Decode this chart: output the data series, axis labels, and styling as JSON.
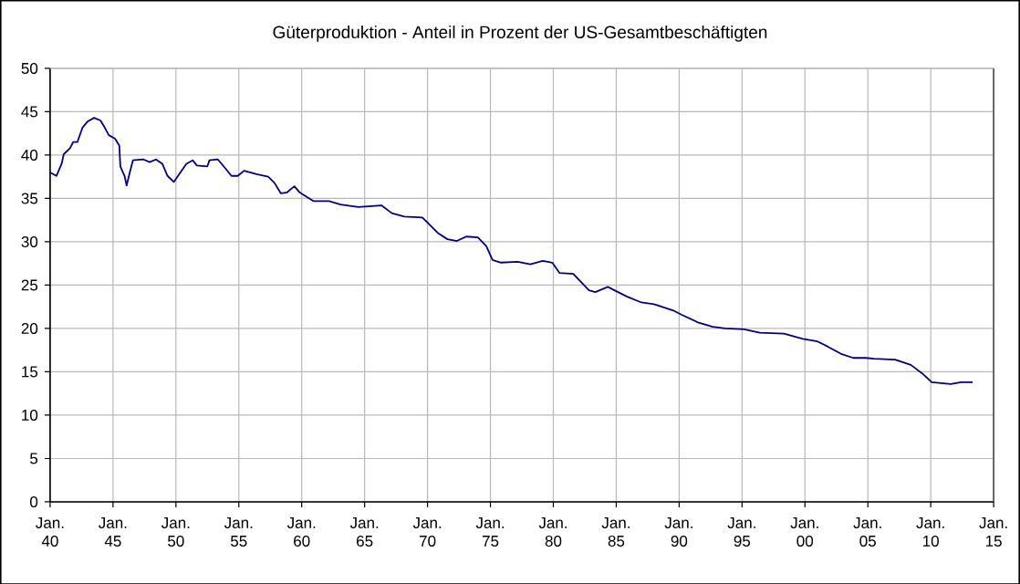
{
  "chart_data": {
    "type": "line",
    "title": "Güterproduktion - Anteil in Prozent der US-Gesamtbeschäftigten",
    "x": [
      "1940-01",
      "1940-07",
      "1940-12",
      "1941-02",
      "1941-08",
      "1941-11",
      "1942-03",
      "1942-08",
      "1943-01",
      "1943-07",
      "1944-01",
      "1944-05",
      "1944-09",
      "1945-03",
      "1945-07",
      "1945-08",
      "1945-12",
      "1946-02",
      "1946-05",
      "1946-08",
      "1947-06",
      "1947-12",
      "1948-06",
      "1948-12",
      "1949-05",
      "1949-11",
      "1950-03",
      "1950-11",
      "1951-05",
      "1951-09",
      "1952-07",
      "1952-09",
      "1953-05",
      "1953-12",
      "1954-06",
      "1954-12",
      "1955-06",
      "1956-06",
      "1957-05",
      "1957-11",
      "1958-05",
      "1958-11",
      "1959-06",
      "1959-11",
      "1960-03",
      "1960-12",
      "1962-03",
      "1963-02",
      "1964-07",
      "1966-05",
      "1967-03",
      "1968-03",
      "1969-08",
      "1970-02",
      "1970-11",
      "1971-08",
      "1972-05",
      "1973-02",
      "1974-01",
      "1974-09",
      "1975-03",
      "1975-11",
      "1977-03",
      "1978-03",
      "1979-03",
      "1979-12",
      "1980-07",
      "1981-08",
      "1982-11",
      "1983-05",
      "1984-05",
      "1985-01",
      "1985-11",
      "1987-01",
      "1988-01",
      "1989-07",
      "1990-03",
      "1991-07",
      "1992-09",
      "1993-09",
      "1995-03",
      "1996-06",
      "1998-05",
      "1999-11",
      "2001-01",
      "2001-11",
      "2002-11",
      "2003-11",
      "2004-11",
      "2005-07",
      "2007-03",
      "2008-06",
      "2009-06",
      "2010-02",
      "2011-08",
      "2012-06",
      "2013-05"
    ],
    "series": [
      {
        "color": "#000080",
        "values": [
          38.0,
          37.6,
          39.0,
          40.1,
          40.8,
          41.5,
          41.5,
          43.2,
          43.9,
          44.3,
          44.0,
          43.2,
          42.3,
          41.9,
          41.1,
          38.7,
          37.6,
          36.5,
          38.0,
          39.4,
          39.5,
          39.2,
          39.5,
          39.0,
          37.6,
          36.9,
          37.6,
          39.0,
          39.4,
          38.8,
          38.7,
          39.4,
          39.5,
          38.5,
          37.6,
          37.6,
          38.2,
          37.8,
          37.5,
          36.8,
          35.6,
          35.7,
          36.4,
          35.7,
          35.4,
          34.7,
          34.7,
          34.3,
          34.0,
          34.2,
          33.3,
          32.9,
          32.8,
          32.1,
          31.0,
          30.3,
          30.1,
          30.6,
          30.5,
          29.5,
          27.9,
          27.6,
          27.7,
          27.4,
          27.8,
          27.6,
          26.4,
          26.3,
          24.4,
          24.2,
          24.8,
          24.3,
          23.7,
          23.0,
          22.8,
          22.1,
          21.6,
          20.7,
          20.2,
          20.0,
          19.9,
          19.5,
          19.4,
          18.8,
          18.5,
          17.9,
          17.1,
          16.6,
          16.6,
          16.5,
          16.4,
          15.8,
          14.7,
          13.8,
          13.6,
          13.8,
          13.8
        ]
      }
    ],
    "xlim": [
      "1940-01",
      "2015-01"
    ],
    "ylim": [
      0,
      50
    ],
    "xticks": [
      {
        "value": "1940-01",
        "label": "Jan. 40"
      },
      {
        "value": "1945-01",
        "label": "Jan. 45"
      },
      {
        "value": "1950-01",
        "label": "Jan. 50"
      },
      {
        "value": "1955-01",
        "label": "Jan. 55"
      },
      {
        "value": "1960-01",
        "label": "Jan. 60"
      },
      {
        "value": "1965-01",
        "label": "Jan. 65"
      },
      {
        "value": "1970-01",
        "label": "Jan. 70"
      },
      {
        "value": "1975-01",
        "label": "Jan. 75"
      },
      {
        "value": "1980-01",
        "label": "Jan. 80"
      },
      {
        "value": "1985-01",
        "label": "Jan. 85"
      },
      {
        "value": "1990-01",
        "label": "Jan. 90"
      },
      {
        "value": "1995-01",
        "label": "Jan. 95"
      },
      {
        "value": "2000-01",
        "label": "Jan. 00"
      },
      {
        "value": "2005-01",
        "label": "Jan. 05"
      },
      {
        "value": "2010-01",
        "label": "Jan. 10"
      },
      {
        "value": "2015-01",
        "label": "Jan. 15"
      }
    ],
    "yticks": [
      0,
      5,
      10,
      15,
      20,
      25,
      30,
      35,
      40,
      45,
      50
    ],
    "grid": true,
    "marker": "none",
    "line_style": "solid"
  }
}
